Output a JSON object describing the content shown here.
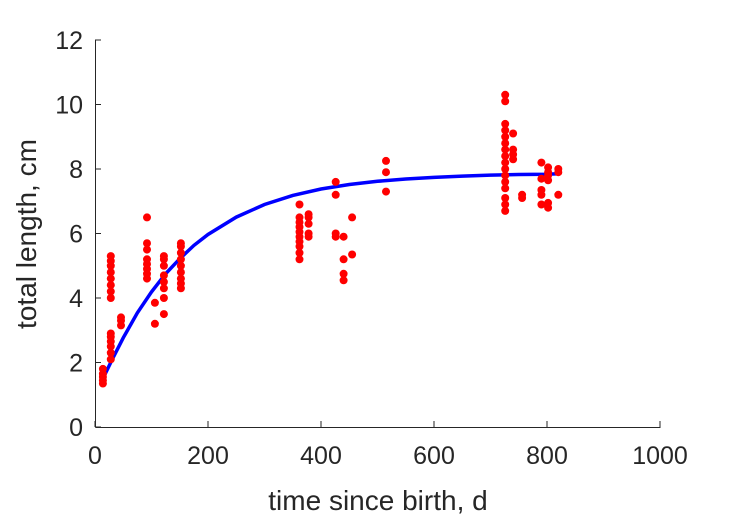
{
  "chart_data": {
    "type": "scatter",
    "title": "",
    "xlabel": "time since birth, d",
    "ylabel": "total length, cm",
    "xlim": [
      0,
      1000
    ],
    "ylim": [
      0,
      12
    ],
    "xticks": [
      0,
      200,
      400,
      600,
      800,
      1000
    ],
    "yticks": [
      0,
      2,
      4,
      6,
      8,
      10,
      12
    ],
    "grid": false,
    "legend": "none",
    "series": [
      {
        "kind": "scatter",
        "color": "#ff0000",
        "points": [
          [
            14,
            1.35
          ],
          [
            14,
            1.45
          ],
          [
            14,
            1.55
          ],
          [
            14,
            1.65
          ],
          [
            14,
            1.8
          ],
          [
            28,
            2.1
          ],
          [
            28,
            2.3
          ],
          [
            28,
            2.5
          ],
          [
            28,
            2.65
          ],
          [
            28,
            2.8
          ],
          [
            28,
            2.9
          ],
          [
            28,
            4.0
          ],
          [
            28,
            4.2
          ],
          [
            28,
            4.4
          ],
          [
            28,
            4.6
          ],
          [
            28,
            4.8
          ],
          [
            28,
            5.0
          ],
          [
            28,
            5.15
          ],
          [
            28,
            5.3
          ],
          [
            46,
            3.15
          ],
          [
            46,
            3.3
          ],
          [
            46,
            3.4
          ],
          [
            92,
            4.6
          ],
          [
            92,
            4.75
          ],
          [
            92,
            4.9
          ],
          [
            92,
            5.05
          ],
          [
            92,
            5.2
          ],
          [
            92,
            5.5
          ],
          [
            92,
            5.7
          ],
          [
            92,
            6.5
          ],
          [
            106,
            3.2
          ],
          [
            106,
            3.85
          ],
          [
            122,
            3.5
          ],
          [
            122,
            4.0
          ],
          [
            122,
            4.3
          ],
          [
            122,
            4.5
          ],
          [
            122,
            4.7
          ],
          [
            122,
            5.0
          ],
          [
            122,
            5.2
          ],
          [
            122,
            5.3
          ],
          [
            152,
            4.3
          ],
          [
            152,
            4.45
          ],
          [
            152,
            4.6
          ],
          [
            152,
            4.8
          ],
          [
            152,
            5.0
          ],
          [
            152,
            5.2
          ],
          [
            152,
            5.4
          ],
          [
            152,
            5.6
          ],
          [
            152,
            5.7
          ],
          [
            362,
            5.2
          ],
          [
            362,
            5.4
          ],
          [
            362,
            5.6
          ],
          [
            362,
            5.75
          ],
          [
            362,
            5.9
          ],
          [
            362,
            6.05
          ],
          [
            362,
            6.2
          ],
          [
            362,
            6.35
          ],
          [
            362,
            6.5
          ],
          [
            362,
            6.9
          ],
          [
            378,
            5.9
          ],
          [
            378,
            6.0
          ],
          [
            378,
            6.3
          ],
          [
            378,
            6.5
          ],
          [
            378,
            6.6
          ],
          [
            426,
            5.9
          ],
          [
            426,
            6.0
          ],
          [
            426,
            7.2
          ],
          [
            426,
            7.6
          ],
          [
            440,
            4.55
          ],
          [
            440,
            4.75
          ],
          [
            440,
            5.2
          ],
          [
            440,
            5.9
          ],
          [
            455,
            5.35
          ],
          [
            455,
            6.5
          ],
          [
            515,
            7.3
          ],
          [
            515,
            7.9
          ],
          [
            515,
            8.25
          ],
          [
            726,
            6.7
          ],
          [
            726,
            6.9
          ],
          [
            726,
            7.1
          ],
          [
            726,
            7.4
          ],
          [
            726,
            7.6
          ],
          [
            726,
            7.8
          ],
          [
            726,
            8.0
          ],
          [
            726,
            8.2
          ],
          [
            726,
            8.4
          ],
          [
            726,
            8.6
          ],
          [
            726,
            8.8
          ],
          [
            726,
            9.0
          ],
          [
            726,
            9.2
          ],
          [
            726,
            9.4
          ],
          [
            726,
            10.1
          ],
          [
            726,
            10.3
          ],
          [
            740,
            8.3
          ],
          [
            740,
            8.45
          ],
          [
            740,
            8.6
          ],
          [
            740,
            9.1
          ],
          [
            756,
            7.1
          ],
          [
            756,
            7.2
          ],
          [
            790,
            6.9
          ],
          [
            790,
            7.2
          ],
          [
            790,
            7.35
          ],
          [
            790,
            7.7
          ],
          [
            790,
            8.2
          ],
          [
            802,
            6.8
          ],
          [
            802,
            6.95
          ],
          [
            802,
            7.65
          ],
          [
            802,
            7.8
          ],
          [
            802,
            7.9
          ],
          [
            802,
            8.05
          ],
          [
            820,
            7.2
          ],
          [
            820,
            7.9
          ],
          [
            820,
            8.0
          ]
        ]
      },
      {
        "kind": "line",
        "color": "#0000ff",
        "x": [
          14,
          30,
          50,
          75,
          100,
          125,
          150,
          175,
          200,
          250,
          300,
          350,
          400,
          450,
          500,
          550,
          600,
          650,
          700,
          750,
          800,
          820
        ],
        "y": [
          1.5,
          2.08,
          2.77,
          3.54,
          4.19,
          4.75,
          5.22,
          5.63,
          5.97,
          6.51,
          6.9,
          7.18,
          7.38,
          7.52,
          7.62,
          7.69,
          7.74,
          7.78,
          7.81,
          7.83,
          7.84,
          7.85
        ]
      }
    ]
  }
}
